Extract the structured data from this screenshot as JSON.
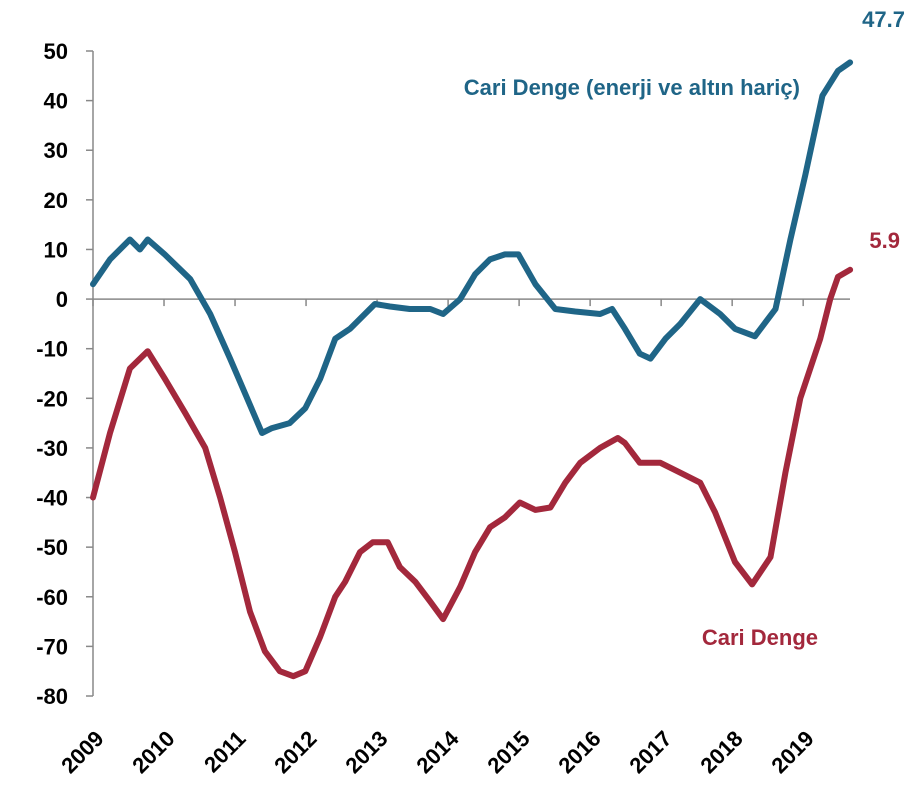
{
  "chart_data": {
    "type": "line",
    "xlim": [
      2009,
      2019.8
    ],
    "xticks": [
      2009,
      2010,
      2011,
      2012,
      2013,
      2014,
      2015,
      2016,
      2017,
      2018,
      2019
    ],
    "ylim": [
      -80,
      50
    ],
    "yticks": [
      50,
      40,
      30,
      20,
      10,
      0,
      -10,
      -20,
      -30,
      -40,
      -50,
      -60,
      -70,
      -80
    ],
    "series": [
      {
        "name": "Cari Denge (enerji ve altın hariç)",
        "color": "#1f6587",
        "x": [
          2009.0,
          2009.24,
          2009.52,
          2009.66,
          2009.77,
          2010.01,
          2010.37,
          2010.65,
          2010.93,
          2011.14,
          2011.38,
          2011.52,
          2011.77,
          2011.99,
          2012.2,
          2012.41,
          2012.62,
          2012.97,
          2013.18,
          2013.46,
          2013.75,
          2013.93,
          2014.17,
          2014.38,
          2014.59,
          2014.8,
          2014.99,
          2015.23,
          2015.51,
          2015.79,
          2016.14,
          2016.31,
          2016.49,
          2016.7,
          2016.85,
          2017.06,
          2017.27,
          2017.55,
          2017.83,
          2018.04,
          2018.32,
          2018.61,
          2018.82,
          2019.03,
          2019.27,
          2019.49,
          2019.66
        ],
        "values": [
          3,
          8,
          12,
          10,
          12,
          9,
          4,
          -3,
          -12,
          -19,
          -27,
          -26,
          -25,
          -22,
          -16,
          -8,
          -6,
          -1,
          -1.5,
          -2,
          -2,
          -3,
          0,
          5,
          8,
          9,
          9,
          3,
          -2,
          -2.5,
          -3,
          -2,
          -6,
          -11,
          -12,
          -8,
          -5,
          0,
          -3,
          -6,
          -7.5,
          -2,
          12,
          25,
          41,
          46,
          47.7
        ]
      },
      {
        "name": "Cari Denge",
        "color": "#a3283c",
        "x": [
          2009.0,
          2009.24,
          2009.52,
          2009.77,
          2010.01,
          2010.3,
          2010.58,
          2010.79,
          2011.0,
          2011.21,
          2011.42,
          2011.63,
          2011.82,
          2011.99,
          2012.2,
          2012.41,
          2012.55,
          2012.76,
          2012.94,
          2013.15,
          2013.32,
          2013.54,
          2013.75,
          2013.93,
          2014.17,
          2014.38,
          2014.59,
          2014.8,
          2015.01,
          2015.23,
          2015.44,
          2015.65,
          2015.86,
          2016.14,
          2016.39,
          2016.49,
          2016.7,
          2016.99,
          2017.27,
          2017.55,
          2017.76,
          2018.04,
          2018.28,
          2018.54,
          2018.75,
          2018.96,
          2019.24,
          2019.38,
          2019.49,
          2019.66
        ],
        "values": [
          -40,
          -27,
          -14,
          -10.5,
          -16,
          -23,
          -30,
          -40,
          -51,
          -63,
          -71,
          -75,
          -76,
          -75,
          -68,
          -60,
          -57,
          -51,
          -49,
          -49,
          -54,
          -57,
          -61,
          -64.5,
          -58,
          -51,
          -46,
          -44,
          -41,
          -42.5,
          -42,
          -37,
          -33,
          -30,
          -28,
          -29,
          -33,
          -33,
          -35,
          -37,
          -43,
          -53,
          -57.5,
          -52,
          -35,
          -20,
          -8,
          0,
          4.5,
          5.9
        ]
      }
    ]
  }
}
